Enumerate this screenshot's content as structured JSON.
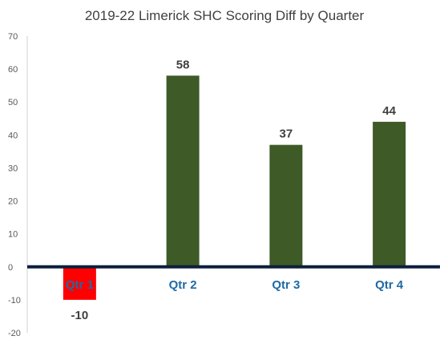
{
  "chart_data": {
    "type": "bar",
    "title": "2019-22 Limerick SHC Scoring Diff by Quarter",
    "categories": [
      "Qtr 1",
      "Qtr 2",
      "Qtr 3",
      "Qtr 4"
    ],
    "values": [
      -10,
      58,
      37,
      44
    ],
    "data_labels": [
      "-10",
      "58",
      "37",
      "44"
    ],
    "xlabel": "",
    "ylabel": "",
    "ylim": [
      -20,
      70
    ],
    "yticks": [
      70,
      60,
      50,
      40,
      30,
      20,
      10,
      0,
      -10,
      -20
    ],
    "grid": false,
    "legend": "none",
    "colors": {
      "positive_bar": "#3d5a27",
      "negative_bar": "#ff0000",
      "category_label": "#1f6aa5",
      "zero_axis": "#0d1f3c",
      "y_axis": "#d0d0d0"
    }
  }
}
